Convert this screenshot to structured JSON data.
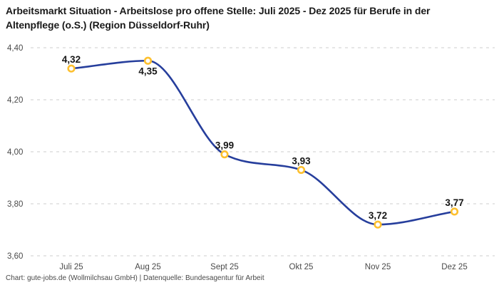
{
  "title": "Arbeitsmarkt Situation - Arbeitslose pro offene Stelle: Juli 2025 - Dez 2025 für Berufe in der Altenpflege (o.S.) (Region Düsseldorf-Ruhr)",
  "footer": "Chart: gute-jobs.de (Wollmilchsau GmbH) | Datenquelle: Bundesagentur für Arbeit",
  "colors": {
    "line": "#263e9c",
    "marker_ring": "#fdc02f",
    "marker_fill": "#ffffff",
    "grid": "#cdcdcd",
    "tick_text": "#4a4a4a",
    "value_text": "#161616",
    "title_text": "#1a1a1a"
  },
  "chart_data": {
    "type": "line",
    "title": "Arbeitsmarkt Situation - Arbeitslose pro offene Stelle: Juli 2025 - Dez 2025 für Berufe in der Altenpflege (o.S.) (Region Düsseldorf-Ruhr)",
    "categories": [
      "Juli 25",
      "Aug 25",
      "Sept 25",
      "Okt 25",
      "Nov 25",
      "Dez 25"
    ],
    "values": [
      4.32,
      4.35,
      3.99,
      3.93,
      3.72,
      3.77
    ],
    "value_labels": [
      "4,32",
      "4,35",
      "3,99",
      "3,93",
      "3,72",
      "3,77"
    ],
    "value_label_positions": [
      "above",
      "below",
      "above",
      "above",
      "above",
      "above"
    ],
    "ylim": [
      3.6,
      4.4
    ],
    "yticks": [
      3.6,
      3.8,
      4.0,
      4.2,
      4.4
    ],
    "ytick_labels": [
      "3,60",
      "3,80",
      "4,00",
      "4,20",
      "4,40"
    ],
    "xlabel": "",
    "ylabel": "",
    "grid": "horizontal-dashed",
    "legend": "none",
    "curve": "monotone"
  }
}
